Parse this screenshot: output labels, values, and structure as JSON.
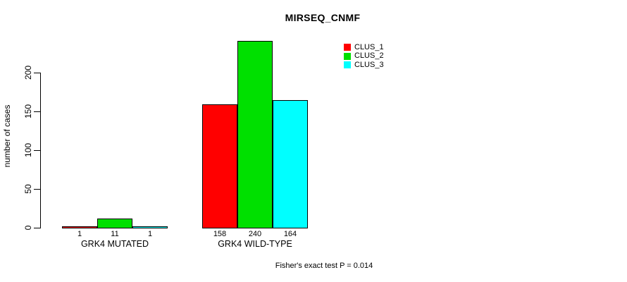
{
  "chart_data": {
    "type": "bar",
    "title": "MIRSEQ_CNMF",
    "ylabel": "number of cases",
    "xlabel": "",
    "categories": [
      "GRK4 MUTATED",
      "GRK4 WILD-TYPE"
    ],
    "series": [
      {
        "name": "CLUS_1",
        "color": "#FF0000",
        "values": [
          1,
          158
        ]
      },
      {
        "name": "CLUS_2",
        "color": "#00E000",
        "values": [
          11,
          240
        ]
      },
      {
        "name": "CLUS_3",
        "color": "#00FFFF",
        "values": [
          1,
          164
        ]
      }
    ],
    "bar_value_labels": [
      [
        "1",
        "11",
        "1"
      ],
      [
        "158",
        "240",
        "164"
      ]
    ],
    "yticks": [
      0,
      50,
      100,
      150,
      200
    ],
    "ylim": [
      0,
      240
    ],
    "grid": false,
    "legend_position": "top-right",
    "bar_border_color": "#000000",
    "background_color": "#FFFFFF",
    "annotation": "Fisher's exact test P = 0.014"
  }
}
